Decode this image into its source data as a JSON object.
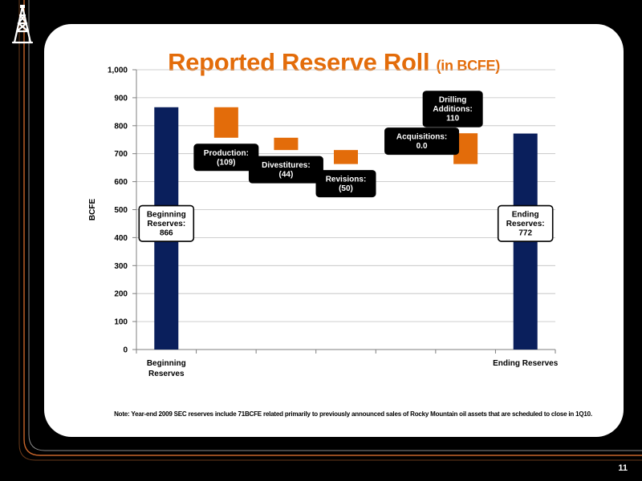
{
  "slide": {
    "title": "Reported Reserve Roll",
    "title_suffix": "(in BCFE)",
    "footnote": "Note: Year-end 2009 SEC reserves include 71BCFE related primarily to previously announced sales of Rocky Mountain oil assets that are scheduled to close in 1Q10.",
    "page_number": "11"
  },
  "colors": {
    "title": "#E36C0A",
    "bar_total": "#0A1F5C",
    "bar_change": "#E36C0A",
    "frame_line": "#C8652A",
    "callout_dark": "#000000"
  },
  "chart_data": {
    "type": "bar",
    "subtype": "waterfall",
    "ylabel": "BCFE",
    "ylim": [
      0,
      1000
    ],
    "yticks": [
      0,
      100,
      200,
      300,
      400,
      500,
      600,
      700,
      800,
      900,
      1000
    ],
    "ytick_labels": [
      "0",
      "100",
      "200",
      "300",
      "400",
      "500",
      "600",
      "700",
      "800",
      "900",
      "1,000"
    ],
    "grid": true,
    "steps": [
      {
        "axis_label": "Beginning Reserves",
        "kind": "total",
        "value": 866,
        "callout": [
          "Beginning",
          "Reserves:",
          "866"
        ],
        "callout_style": "light"
      },
      {
        "axis_label": "",
        "kind": "change",
        "value": -109,
        "callout": [
          "Production:",
          "(109)"
        ],
        "callout_style": "dark"
      },
      {
        "axis_label": "",
        "kind": "change",
        "value": -44,
        "callout": [
          "Divestitures:",
          "(44)"
        ],
        "callout_style": "dark"
      },
      {
        "axis_label": "",
        "kind": "change",
        "value": -50,
        "callout": [
          "Revisions:",
          "(50)"
        ],
        "callout_style": "dark"
      },
      {
        "axis_label": "",
        "kind": "change",
        "value": 0,
        "callout": [
          "Acquisitions:",
          "0.0"
        ],
        "callout_style": "dark"
      },
      {
        "axis_label": "",
        "kind": "change",
        "value": 110,
        "callout": [
          "Drilling",
          "Additions:",
          "110"
        ],
        "callout_style": "dark"
      },
      {
        "axis_label": "Ending Reserves",
        "kind": "total",
        "value": 772,
        "callout": [
          "Ending",
          "Reserves:",
          "772"
        ],
        "callout_style": "light"
      }
    ]
  }
}
